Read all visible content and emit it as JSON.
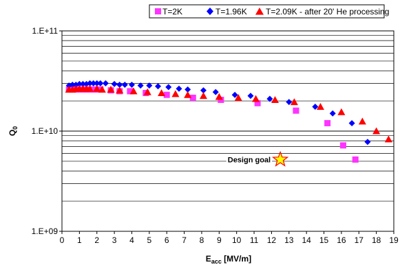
{
  "chart_data": {
    "type": "scatter",
    "xlabel_main": "E",
    "xlabel_sub": "acc",
    "xlabel_unit": " [MV/m]",
    "ylabel_main": "Q",
    "ylabel_sub": "0",
    "xlim": [
      0,
      19
    ],
    "ylim": [
      1000000000,
      100000000000
    ],
    "yscale": "log",
    "x_ticks": [
      "0",
      "1",
      "2",
      "3",
      "4",
      "5",
      "6",
      "7",
      "8",
      "9",
      "10",
      "11",
      "12",
      "13",
      "14",
      "15",
      "16",
      "17",
      "18",
      "19"
    ],
    "y_ticks": [
      "1.E+09",
      "1.E+10",
      "1.E+11"
    ],
    "grid": "horizontal",
    "legend_position": "top",
    "series": [
      {
        "name": "T=2K",
        "marker": "square",
        "color": "#ff33ff",
        "points": [
          [
            0.4,
            26000000000.0
          ],
          [
            0.6,
            26000000000.0
          ],
          [
            0.8,
            26000000000.0
          ],
          [
            1.0,
            26000000000.0
          ],
          [
            1.2,
            26000000000.0
          ],
          [
            1.4,
            26000000000.0
          ],
          [
            1.6,
            26000000000.0
          ],
          [
            1.8,
            26000000000.0
          ],
          [
            2.0,
            26000000000.0
          ],
          [
            2.2,
            26000000000.0
          ],
          [
            2.8,
            25500000000.0
          ],
          [
            3.3,
            25000000000.0
          ],
          [
            3.9,
            25000000000.0
          ],
          [
            4.8,
            24000000000.0
          ],
          [
            6.0,
            23000000000.0
          ],
          [
            7.5,
            21500000000.0
          ],
          [
            9.1,
            20500000000.0
          ],
          [
            11.2,
            19000000000.0
          ],
          [
            13.4,
            16000000000.0
          ],
          [
            15.2,
            12000000000.0
          ],
          [
            16.1,
            7200000000.0
          ],
          [
            16.8,
            5200000000.0
          ]
        ]
      },
      {
        "name": "T=1.96K",
        "marker": "diamond",
        "color": "#0000ff",
        "points": [
          [
            0.4,
            28500000000.0
          ],
          [
            0.6,
            29000000000.0
          ],
          [
            0.8,
            29000000000.0
          ],
          [
            1.0,
            29500000000.0
          ],
          [
            1.2,
            29500000000.0
          ],
          [
            1.4,
            29500000000.0
          ],
          [
            1.6,
            30000000000.0
          ],
          [
            1.8,
            30000000000.0
          ],
          [
            2.0,
            30000000000.0
          ],
          [
            2.2,
            30000000000.0
          ],
          [
            2.5,
            30000000000.0
          ],
          [
            3.0,
            29500000000.0
          ],
          [
            3.3,
            29000000000.0
          ],
          [
            3.6,
            29000000000.0
          ],
          [
            4.0,
            29000000000.0
          ],
          [
            4.5,
            28500000000.0
          ],
          [
            5.0,
            28500000000.0
          ],
          [
            5.5,
            28000000000.0
          ],
          [
            6.1,
            27500000000.0
          ],
          [
            6.7,
            26500000000.0
          ],
          [
            7.2,
            26000000000.0
          ],
          [
            8.1,
            25500000000.0
          ],
          [
            8.8,
            24500000000.0
          ],
          [
            9.9,
            23000000000.0
          ],
          [
            10.8,
            22500000000.0
          ],
          [
            11.9,
            21000000000.0
          ],
          [
            13.0,
            19500000000.0
          ],
          [
            14.5,
            17500000000.0
          ],
          [
            15.5,
            15000000000.0
          ],
          [
            16.6,
            12000000000.0
          ],
          [
            17.5,
            7800000000.0
          ]
        ]
      },
      {
        "name": "T=2.09K - after 20' He processing",
        "marker": "triangle",
        "color": "#ff0000",
        "points": [
          [
            0.4,
            26000000000.0
          ],
          [
            0.6,
            26000000000.0
          ],
          [
            0.8,
            26500000000.0
          ],
          [
            1.0,
            26500000000.0
          ],
          [
            1.2,
            26500000000.0
          ],
          [
            1.4,
            26500000000.0
          ],
          [
            1.6,
            26500000000.0
          ],
          [
            2.0,
            26500000000.0
          ],
          [
            2.3,
            26000000000.0
          ],
          [
            2.8,
            26000000000.0
          ],
          [
            3.3,
            25500000000.0
          ],
          [
            4.1,
            25000000000.0
          ],
          [
            4.9,
            24500000000.0
          ],
          [
            5.7,
            24000000000.0
          ],
          [
            6.5,
            23500000000.0
          ],
          [
            7.2,
            23000000000.0
          ],
          [
            8.1,
            22500000000.0
          ],
          [
            9.0,
            22000000000.0
          ],
          [
            10.1,
            21500000000.0
          ],
          [
            11.1,
            21000000000.0
          ],
          [
            12.2,
            20500000000.0
          ],
          [
            13.3,
            19500000000.0
          ],
          [
            14.8,
            17500000000.0
          ],
          [
            16.0,
            15500000000.0
          ],
          [
            17.2,
            12500000000.0
          ],
          [
            18.0,
            10000000000.0
          ],
          [
            18.7,
            8300000000.0
          ]
        ]
      }
    ],
    "annotations": [
      {
        "text": "Design goal",
        "marker": "star",
        "color": "#ffff00",
        "stroke": "#ff0000",
        "x": 12.5,
        "y": 5200000000.0
      }
    ]
  }
}
